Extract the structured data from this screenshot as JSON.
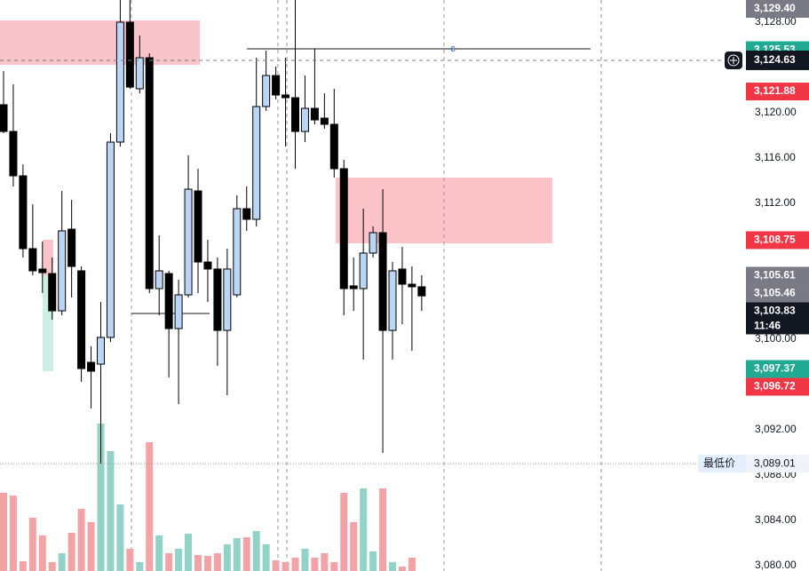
{
  "chart_data": {
    "type": "candlestick",
    "ylim": [
      3079.53,
      3129.96
    ],
    "yticks": [
      {
        "value": 3128,
        "label": "3,128.00"
      },
      {
        "value": 3120,
        "label": "3,120.00"
      },
      {
        "value": 3116,
        "label": "3,116.00"
      },
      {
        "value": 3112,
        "label": "3,112.00"
      },
      {
        "value": 3100,
        "label": "3,100.00"
      },
      {
        "value": 3092,
        "label": "3,092.00"
      },
      {
        "value": 3088,
        "label": "3,088.00"
      },
      {
        "value": 3084,
        "label": "3,084.00"
      },
      {
        "value": 3080,
        "label": "3,080.00"
      }
    ],
    "up_color": "#bbd6f5",
    "down_color": "#000000",
    "volume_up_color": "#92d3c8",
    "volume_down_color": "#f3a3a6",
    "open": [
      3120.71,
      3118.35,
      3114.43,
      3108.0,
      3106.2,
      3105.8,
      3102.51,
      3109.72,
      3106.04,
      3097.96,
      3097.8,
      3100.16,
      3117.41,
      3128.0,
      3122.12,
      3124.86,
      3104.47,
      3105.8,
      3100.94,
      3103.92,
      3113.1,
      3106.82,
      3106.2,
      3100.78,
      3103.92,
      3111.53,
      3110.59,
      3120.55,
      3123.29,
      3121.57,
      3121.33,
      3118.35,
      3120.39,
      3119.53,
      3118.98,
      3115.06,
      3104.71,
      3104.47,
      3107.61,
      3109.41,
      3100.78,
      3106.2,
      3104.86,
      3104.63
    ],
    "high": [
      3123.69,
      3122.51,
      3115.45,
      3111.92,
      3108.63,
      3107.22,
      3113.1,
      3112.31,
      3106.43,
      3099.37,
      3103.29,
      3118.2,
      3129.96,
      3129.96,
      3126.82,
      3125.25,
      3109.18,
      3106.04,
      3105.25,
      3116.24,
      3115.06,
      3108.78,
      3107.22,
      3108.0,
      3112.71,
      3113.49,
      3124.86,
      3125.49,
      3124.08,
      3124.86,
      3129.96,
      3123.29,
      3125.65,
      3121.72,
      3122.12,
      3115.84,
      3107.22,
      3111.53,
      3109.96,
      3113.25,
      3106.82,
      3108.16,
      3106.43,
      3105.65
    ],
    "low": [
      3118.2,
      3113.49,
      3107.22,
      3105.65,
      3104.08,
      3101.73,
      3102.12,
      3103.69,
      3096.24,
      3093.88,
      3089.02,
      3099.76,
      3117.02,
      3122.12,
      3121.72,
      3104.08,
      3102.12,
      3096.63,
      3094.27,
      3103.69,
      3104.08,
      3103.29,
      3097.65,
      3095.06,
      3103.69,
      3109.57,
      3109.96,
      3120.16,
      3121.18,
      3117.02,
      3115.06,
      3117.41,
      3118.98,
      3118.59,
      3114.27,
      3102.12,
      3102.51,
      3098.2,
      3107.22,
      3089.96,
      3098.2,
      3101.33,
      3098.98,
      3102.51
    ],
    "close": [
      3118.35,
      3114.43,
      3108.0,
      3106.04,
      3105.88,
      3102.51,
      3109.57,
      3106.43,
      3097.41,
      3097.18,
      3100.16,
      3117.41,
      3128.0,
      3122.27,
      3124.86,
      3104.47,
      3106.04,
      3100.94,
      3103.92,
      3113.25,
      3106.82,
      3106.2,
      3100.78,
      3106.2,
      3111.53,
      3110.59,
      3120.55,
      3123.29,
      3121.57,
      3121.33,
      3118.35,
      3120.39,
      3119.37,
      3118.98,
      3115.06,
      3104.47,
      3104.47,
      3107.61,
      3109.41,
      3100.78,
      3106.04,
      3104.86,
      3104.63,
      3103.83
    ],
    "volume": [
      88,
      85,
      11,
      60,
      40,
      10,
      20,
      43,
      70,
      55,
      166,
      135,
      75,
      25,
      10,
      145,
      40,
      20,
      25,
      42,
      18,
      17,
      20,
      30,
      37,
      38,
      45,
      30,
      12,
      10,
      15,
      25,
      15,
      20,
      10,
      88,
      55,
      93,
      22,
      93,
      10,
      5,
      15,
      0
    ],
    "price_labels": [
      {
        "value": 3129.4,
        "label": "3,129.40",
        "color": "#787b86"
      },
      {
        "value": 3125.53,
        "label": "3,125.53",
        "color": "#22ab94"
      },
      {
        "value": 3121.88,
        "label": "3,121.88",
        "color": "#f23645"
      },
      {
        "value": 3108.75,
        "label": "3,108.75",
        "color": "#f23645"
      },
      {
        "value": 3105.61,
        "label": "3,105.61",
        "color": "#787b86"
      },
      {
        "value": 3105.46,
        "label": "3,105.46",
        "color": "#787b86"
      },
      {
        "value": 3103.83,
        "label": "3,103.83",
        "color": "#131722",
        "countdown": "11:46"
      },
      {
        "value": 3097.37,
        "label": "3,097.37",
        "color": "#22ab94"
      },
      {
        "value": 3096.72,
        "label": "3,096.72",
        "color": "#f23645"
      }
    ],
    "crosshair": {
      "value": 3124.63,
      "label": "3,124.63"
    },
    "low_marker": {
      "name": "最低价",
      "value": 3089.01,
      "label": "3,089.01"
    },
    "annotation": "c"
  }
}
